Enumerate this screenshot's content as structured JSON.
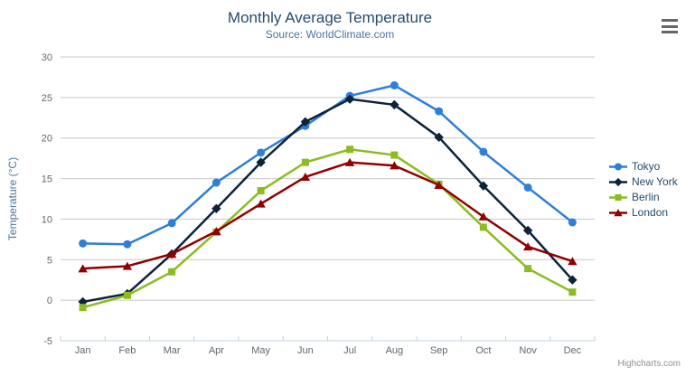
{
  "title": "Monthly Average Temperature",
  "subtitle": "Source: WorldClimate.com",
  "credits": "Highcharts.com",
  "menu_button": {
    "icon": "hamburger-icon"
  },
  "chart_data": {
    "type": "line",
    "title": "Monthly Average Temperature",
    "subtitle": "Source: WorldClimate.com",
    "xlabel": "",
    "ylabel": "Temperature (°C)",
    "ylim": [
      -5,
      30
    ],
    "ytick_step": 5,
    "grid": true,
    "legend_position": "middle-right",
    "categories": [
      "Jan",
      "Feb",
      "Mar",
      "Apr",
      "May",
      "Jun",
      "Jul",
      "Aug",
      "Sep",
      "Oct",
      "Nov",
      "Dec"
    ],
    "series": [
      {
        "name": "Tokyo",
        "color": "#2f7ed8",
        "marker": "circle",
        "values": [
          7.0,
          6.9,
          9.5,
          14.5,
          18.2,
          21.5,
          25.2,
          26.5,
          23.3,
          18.3,
          13.9,
          9.6
        ]
      },
      {
        "name": "New York",
        "color": "#0d233a",
        "marker": "diamond",
        "values": [
          -0.2,
          0.8,
          5.7,
          11.3,
          17.0,
          22.0,
          24.8,
          24.1,
          20.1,
          14.1,
          8.6,
          2.5
        ]
      },
      {
        "name": "Berlin",
        "color": "#8bbc21",
        "marker": "square",
        "values": [
          -0.9,
          0.6,
          3.5,
          8.4,
          13.5,
          17.0,
          18.6,
          17.9,
          14.3,
          9.0,
          3.9,
          1.0
        ]
      },
      {
        "name": "London",
        "color": "#910000",
        "marker": "triangle",
        "values": [
          3.9,
          4.2,
          5.7,
          8.5,
          11.9,
          15.2,
          17.0,
          16.6,
          14.2,
          10.3,
          6.6,
          4.8
        ]
      }
    ]
  },
  "colors": {
    "title_text": "#274b6d",
    "subtitle_text": "#4d759e",
    "legend_text": "#274b6d",
    "axis_label": "#666666",
    "axis_title": "#4d759e",
    "grid_line": "#c8c8c8",
    "axis_line": "#c0d0e0",
    "credits_text": "#909090",
    "menu_icon": "#666666"
  }
}
